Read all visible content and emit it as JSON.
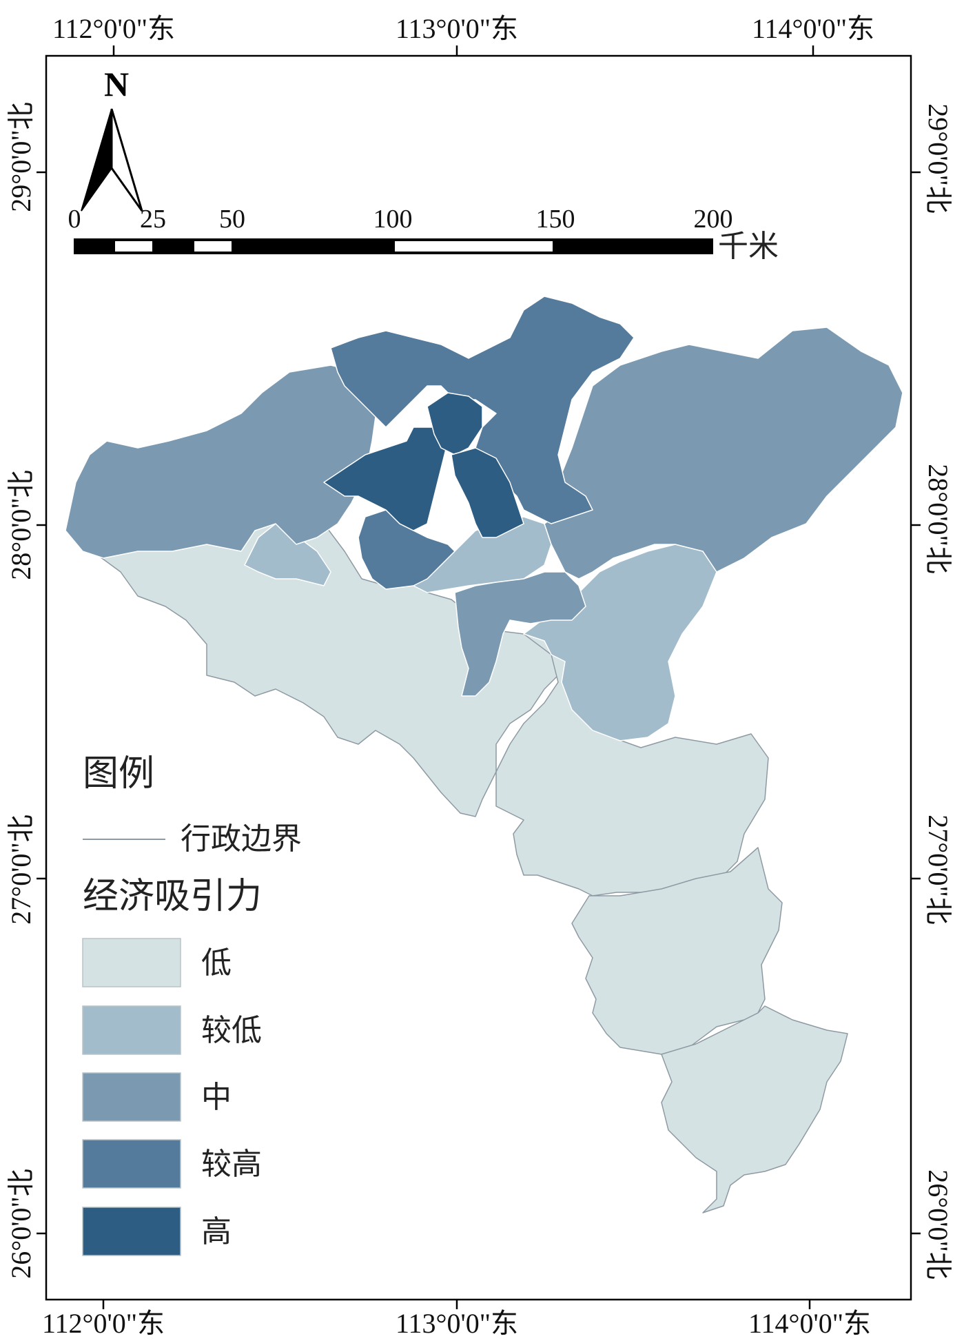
{
  "colors": {
    "low": "#d5e2e4",
    "lower": "#a2bccc",
    "mid": "#7b9ab1",
    "higher": "#557b9c",
    "high": "#2e5d83",
    "boundary": "#8e9aa3"
  },
  "coordinates": {
    "top": [
      "112°0'0\"东",
      "113°0'0\"东",
      "114°0'0\"东"
    ],
    "bottom": [
      "112°0'0\"东",
      "113°0'0\"东",
      "114°0'0\"东"
    ],
    "left": [
      "29°0'0\"北",
      "28°0'0\"北",
      "27°0'0\"北",
      "26°0'0\"北"
    ],
    "right": [
      "29°0'0\"北",
      "28°0'0\"北",
      "27°0'0\"北",
      "26°0'0\"北"
    ]
  },
  "north_arrow": {
    "label": "N",
    "icon": "north-arrow-icon"
  },
  "scale_bar": {
    "ticks": [
      "0",
      "25",
      "50",
      "100",
      "150",
      "200"
    ],
    "unit": "千米"
  },
  "legend": {
    "title": "图例",
    "boundary_label": "行政边界",
    "category_title": "经济吸引力",
    "classes": [
      {
        "label": "低",
        "color_key": "low"
      },
      {
        "label": "较低",
        "color_key": "lower"
      },
      {
        "label": "中",
        "color_key": "mid"
      },
      {
        "label": "较高",
        "color_key": "higher"
      },
      {
        "label": "高",
        "color_key": "high"
      }
    ]
  }
}
